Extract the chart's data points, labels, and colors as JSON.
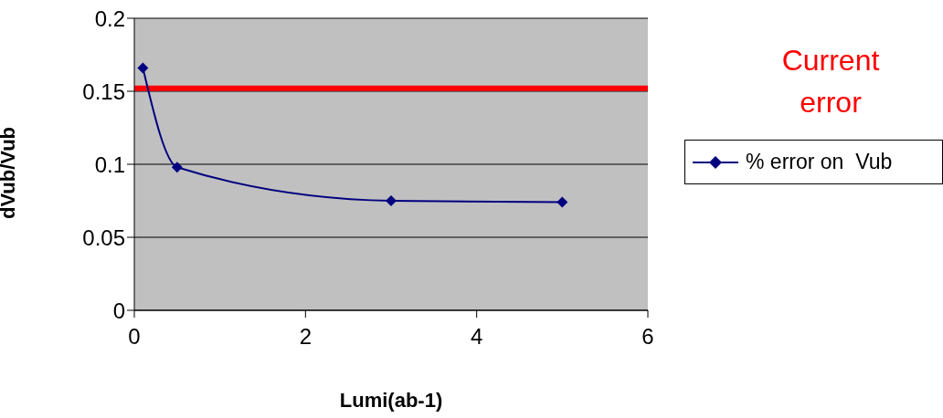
{
  "chart_data": {
    "type": "line",
    "xlabel": "Lumi(ab-1)",
    "ylabel": "dVub/Vub",
    "x": [
      0.1,
      0.5,
      3,
      5
    ],
    "series": [
      {
        "name": "% error on  Vub",
        "color": "#000080",
        "values": [
          0.166,
          0.098,
          0.075,
          0.074
        ]
      }
    ],
    "xlim": [
      0,
      6
    ],
    "xticks": [
      0,
      2,
      4,
      6
    ],
    "ylim": [
      0,
      0.2
    ],
    "yticks": [
      0,
      0.05,
      0.1,
      0.15,
      0.2
    ],
    "grid": "y",
    "legend": "right",
    "marker": "diamond",
    "ref_lines": [
      {
        "axis": "y",
        "value": 0.152,
        "label": "Current error",
        "color": "#ff0000"
      }
    ]
  }
}
